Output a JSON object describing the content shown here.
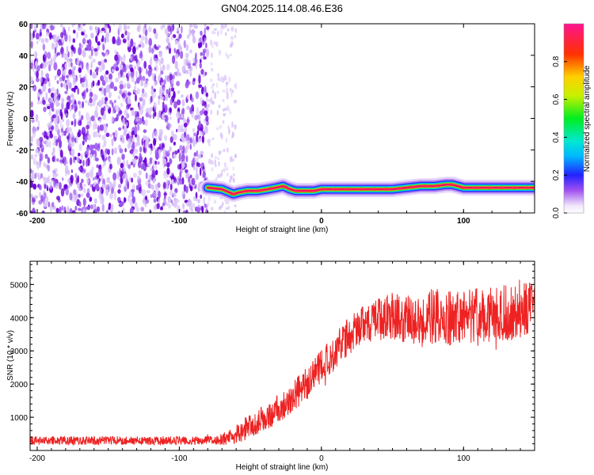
{
  "title": "GN04.2025.114.08.46.E36",
  "colors": {
    "snr_line": "#ee2222",
    "ridge_core": "#e8106a",
    "noise_dark": "#6a00d8",
    "noise_mid": "#9a55f0",
    "noise_light": "#d6bff7"
  },
  "chart_data": [
    {
      "type": "heatmap",
      "xlabel": "Height of straight line (km)",
      "ylabel": "Frequency (Hz)",
      "xlim": [
        -205,
        150
      ],
      "ylim": [
        -60,
        60
      ],
      "x_ticks": [
        -200,
        -100,
        0,
        100
      ],
      "y_ticks": [
        -60,
        -40,
        -20,
        0,
        20,
        40,
        60
      ],
      "noise_region_x": [
        -205,
        -80
      ],
      "sparse_region_x": [
        -80,
        -60
      ],
      "ridge": {
        "x": [
          -80,
          -70,
          -62,
          -58,
          -52,
          -45,
          -38,
          -32,
          -27,
          -22,
          -18,
          -12,
          -5,
          0,
          10,
          20,
          30,
          40,
          50,
          60,
          70,
          80,
          88,
          92,
          96,
          100,
          110,
          120,
          130,
          140,
          150
        ],
        "y": [
          -44,
          -45,
          -48,
          -47,
          -46,
          -46,
          -45,
          -44,
          -43,
          -45,
          -46,
          -46,
          -46,
          -45,
          -45,
          -45,
          -45,
          -45,
          -45,
          -44,
          -43,
          -43,
          -42,
          -42,
          -43,
          -44,
          -44,
          -44,
          -44,
          -44,
          -44
        ]
      },
      "colorbar": {
        "label": "Normalized spectral amplitude",
        "range": [
          0,
          1
        ],
        "ticks": [
          0.0,
          0.2,
          0.4,
          0.6,
          0.8
        ],
        "tick_labels": [
          "0.0",
          "0.2",
          "0.4",
          "0.6",
          "0.8"
        ],
        "colormap": "rainbow (white-purple-blue-cyan-green-yellow-red-magenta)"
      },
      "grid": false
    },
    {
      "type": "line",
      "xlabel": "Height of straight line (km)",
      "ylabel": "SNR (10 * v/v)",
      "xlim": [
        -205,
        150
      ],
      "ylim": [
        0,
        5700
      ],
      "x_ticks": [
        -200,
        -100,
        0,
        100
      ],
      "y_ticks": [
        1000,
        2000,
        3000,
        4000,
        5000
      ],
      "series": [
        {
          "trend": {
            "x": [
              -205,
              -150,
              -100,
              -75,
              -65,
              -55,
              -45,
              -35,
              -25,
              -15,
              -5,
              0,
              10,
              20,
              30,
              40,
              50,
              60,
              70,
              80,
              90,
              100,
              110,
              120,
              130,
              140,
              150
            ],
            "y": [
              300,
              300,
              300,
              300,
              380,
              600,
              850,
              1100,
              1450,
              1800,
              2250,
              2500,
              3000,
              3450,
              3800,
              3950,
              4050,
              3950,
              4000,
              4050,
              4000,
              4050,
              4050,
              4100,
              4150,
              4200,
              4250
            ]
          },
          "noise_amplitude": {
            "x": [
              -205,
              -75,
              -60,
              -20,
              10,
              40,
              80,
              150
            ],
            "y": [
              130,
              130,
              300,
              500,
              550,
              650,
              850,
              850
            ]
          }
        }
      ],
      "grid": false
    }
  ]
}
